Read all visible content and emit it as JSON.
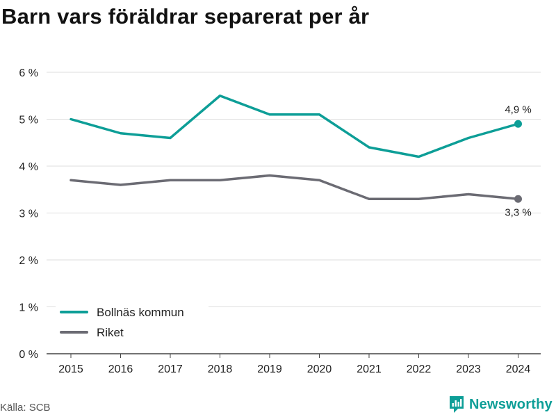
{
  "title": "Barn vars föräldrar separerat per år",
  "source": "Källa: SCB",
  "brand": {
    "name": "Newsworthy",
    "color": "#0d9e97",
    "icon": "bar-chart-logo-icon"
  },
  "chart_data": {
    "type": "line",
    "title": "Barn vars föräldrar separerat per år",
    "x": [
      "2015",
      "2016",
      "2017",
      "2018",
      "2019",
      "2020",
      "2021",
      "2022",
      "2023",
      "2024"
    ],
    "series": [
      {
        "name": "Bollnäs kommun",
        "color": "#0d9e97",
        "values": [
          5.0,
          4.7,
          4.6,
          5.5,
          5.1,
          5.1,
          4.4,
          4.2,
          4.6,
          4.9
        ],
        "end_label": "4,9 %"
      },
      {
        "name": "Riket",
        "color": "#6b6b73",
        "values": [
          3.7,
          3.6,
          3.7,
          3.7,
          3.8,
          3.7,
          3.3,
          3.3,
          3.4,
          3.3
        ],
        "end_label": "3,3 %"
      }
    ],
    "ylim": [
      0,
      6
    ],
    "yticks": [
      0,
      1,
      2,
      3,
      4,
      5,
      6
    ],
    "ytick_labels": [
      "0 %",
      "1 %",
      "2 %",
      "3 %",
      "4 %",
      "5 %",
      "6 %"
    ],
    "grid": true,
    "legend": "bottom-left"
  }
}
